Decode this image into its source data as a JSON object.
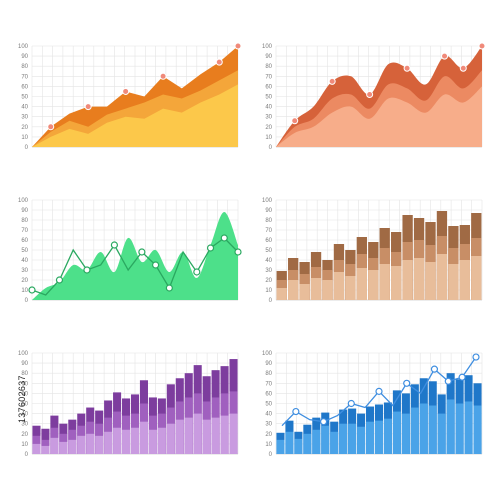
{
  "stock_id": "137602637",
  "chart_data": [
    {
      "type": "area",
      "panel": "top-left",
      "ylim": [
        0,
        100
      ],
      "yticks": [
        "0",
        "10",
        "20",
        "30",
        "40",
        "50",
        "60",
        "70",
        "80",
        "90",
        "100"
      ],
      "x": [
        0,
        1,
        2,
        3,
        4,
        5,
        6,
        7,
        8,
        9,
        10,
        11
      ],
      "series": [
        {
          "color": "#e87d1e",
          "values": [
            0,
            20,
            33,
            40,
            40,
            55,
            50,
            70,
            58,
            72,
            84,
            100
          ],
          "markers": [
            1,
            3,
            5,
            7,
            10,
            11
          ]
        },
        {
          "color": "#f4a63a",
          "values": [
            0,
            15,
            26,
            20,
            32,
            38,
            44,
            52,
            48,
            56,
            66,
            76
          ]
        },
        {
          "color": "#fcc84a",
          "values": [
            0,
            10,
            18,
            13,
            24,
            30,
            28,
            38,
            34,
            44,
            52,
            62
          ]
        }
      ]
    },
    {
      "type": "area",
      "panel": "top-right",
      "ylim": [
        0,
        100
      ],
      "yticks": [
        "0",
        "10",
        "20",
        "30",
        "40",
        "50",
        "60",
        "70",
        "80",
        "90",
        "100"
      ],
      "x": [
        0,
        1,
        2,
        3,
        4,
        5,
        6,
        7,
        8,
        9,
        10,
        11
      ],
      "series": [
        {
          "color": "#d6623a",
          "values": [
            0,
            26,
            40,
            65,
            70,
            52,
            82,
            78,
            62,
            90,
            78,
            100
          ],
          "markers": [
            1,
            3,
            5,
            7,
            9,
            10,
            11
          ]
        },
        {
          "color": "#ec8a62",
          "values": [
            0,
            20,
            28,
            48,
            52,
            38,
            62,
            58,
            46,
            70,
            58,
            76
          ]
        },
        {
          "color": "#f7ad8a",
          "values": [
            0,
            14,
            20,
            34,
            40,
            28,
            48,
            44,
            34,
            52,
            44,
            60
          ]
        }
      ]
    },
    {
      "type": "area",
      "panel": "middle-left",
      "ylim": [
        0,
        100
      ],
      "yticks": [
        "0",
        "10",
        "20",
        "30",
        "40",
        "50",
        "60",
        "70",
        "80",
        "90",
        "100"
      ],
      "x": [
        0,
        1,
        2,
        3,
        4,
        5,
        6,
        7,
        8,
        9,
        10,
        11,
        12,
        13,
        14,
        15
      ],
      "area": {
        "color": "#4de08a",
        "values": [
          0,
          12,
          18,
          35,
          30,
          48,
          28,
          62,
          38,
          50,
          28,
          48,
          22,
          55,
          88,
          55
        ]
      },
      "line": {
        "color": "#2aa860",
        "values": [
          10,
          5,
          20,
          50,
          30,
          35,
          55,
          30,
          48,
          35,
          12,
          48,
          28,
          52,
          62,
          48
        ],
        "markers": [
          0,
          2,
          4,
          6,
          8,
          9,
          10,
          12,
          13,
          14,
          15
        ]
      }
    },
    {
      "type": "bar",
      "panel": "middle-right",
      "ylim": [
        0,
        100
      ],
      "yticks": [
        "0",
        "10",
        "20",
        "30",
        "40",
        "50",
        "60",
        "70",
        "80",
        "90",
        "100"
      ],
      "series": [
        {
          "color": "#a06a44",
          "values": [
            29,
            42,
            38,
            48,
            40,
            56,
            50,
            63,
            58,
            72,
            68,
            85,
            82,
            78,
            89,
            74,
            75,
            87
          ]
        },
        {
          "color": "#c88e66",
          "values": [
            20,
            30,
            26,
            33,
            30,
            40,
            36,
            46,
            42,
            52,
            48,
            58,
            60,
            55,
            64,
            52,
            56,
            62
          ]
        },
        {
          "color": "#e8bd9a",
          "values": [
            12,
            20,
            16,
            22,
            20,
            28,
            24,
            32,
            30,
            36,
            34,
            40,
            42,
            38,
            46,
            36,
            40,
            44
          ]
        }
      ]
    },
    {
      "type": "bar",
      "panel": "bottom-left",
      "ylim": [
        0,
        100
      ],
      "yticks": [
        "0",
        "10",
        "20",
        "30",
        "40",
        "50",
        "60",
        "70",
        "80",
        "90",
        "100"
      ],
      "series": [
        {
          "color": "#7d3d9e",
          "values": [
            28,
            25,
            38,
            30,
            34,
            40,
            46,
            43,
            53,
            61,
            55,
            59,
            73,
            56,
            55,
            69,
            75,
            80,
            88,
            77,
            83,
            87,
            94
          ]
        },
        {
          "color": "#a060bf",
          "values": [
            18,
            14,
            26,
            20,
            24,
            28,
            32,
            30,
            36,
            42,
            38,
            40,
            50,
            38,
            40,
            46,
            52,
            56,
            60,
            52,
            56,
            60,
            62
          ]
        },
        {
          "color": "#c99be0",
          "values": [
            10,
            8,
            16,
            12,
            14,
            18,
            20,
            18,
            22,
            26,
            24,
            26,
            32,
            24,
            26,
            30,
            34,
            36,
            40,
            34,
            36,
            38,
            40
          ]
        }
      ]
    },
    {
      "type": "bar",
      "panel": "bottom-right",
      "ylim": [
        0,
        100
      ],
      "yticks": [
        "0",
        "10",
        "20",
        "30",
        "40",
        "50",
        "60",
        "70",
        "80",
        "90",
        "100"
      ],
      "series": [
        {
          "color": "#1f77c9",
          "values": [
            21,
            33,
            22,
            29,
            36,
            41,
            32,
            44,
            45,
            40,
            47,
            49,
            51,
            63,
            60,
            69,
            75,
            72,
            59,
            80,
            74,
            78,
            70
          ]
        },
        {
          "color": "#4aa3e8",
          "values": [
            14,
            22,
            15,
            20,
            24,
            28,
            22,
            30,
            30,
            27,
            32,
            33,
            35,
            42,
            40,
            46,
            50,
            48,
            40,
            54,
            50,
            52,
            48
          ]
        }
      ],
      "line": {
        "color": "#3f8ee0",
        "values": [
          28,
          42,
          34,
          32,
          38,
          50,
          46,
          62,
          48,
          70,
          60,
          84,
          72,
          76,
          96
        ],
        "markers": [
          1,
          3,
          5,
          7,
          9,
          11,
          12,
          13,
          14
        ]
      }
    }
  ]
}
